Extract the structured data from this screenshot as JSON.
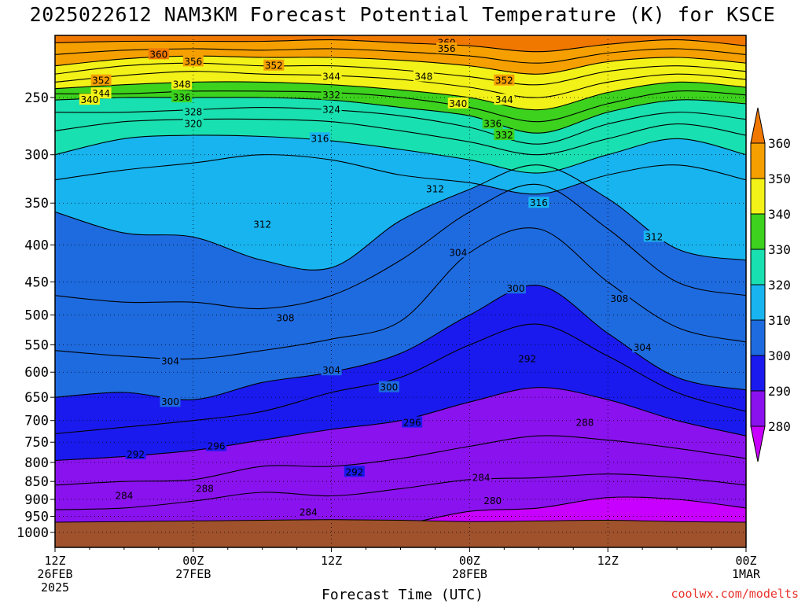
{
  "title": "2025022612 NAM3KM Forecast Potential Temperature (K) for KSCE",
  "footer": {
    "xlabel": "Forecast Time (UTC)",
    "credit": "coolwx.com/modelts"
  },
  "colors": {
    "ground": "#a0522d",
    "credit": "#e8332b"
  },
  "chart_data": {
    "type": "heatmap",
    "title": "2025022612 NAM3KM Forecast Potential Temperature (K) for KSCE",
    "xlabel": "Forecast Time (UTC)",
    "ylabel": "",
    "y_scale": "log-pressure (inverted)",
    "ylim": [
      1000,
      200
    ],
    "xlim": [
      "2025-02-26T12Z",
      "2025-03-01T00Z"
    ],
    "y_ticks": [
      250,
      300,
      350,
      400,
      450,
      500,
      550,
      600,
      650,
      700,
      750,
      800,
      850,
      900,
      950,
      1000
    ],
    "x_ticks": [
      {
        "x": 0,
        "lines": [
          "12Z",
          "26FEB",
          "2025"
        ]
      },
      {
        "x": 12,
        "lines": [
          "00Z",
          "27FEB"
        ]
      },
      {
        "x": 24,
        "lines": [
          "12Z"
        ]
      },
      {
        "x": 36,
        "lines": [
          "00Z",
          "28FEB"
        ]
      },
      {
        "x": 48,
        "lines": [
          "12Z"
        ]
      },
      {
        "x": 60,
        "lines": [
          "00Z",
          "1MAR"
        ]
      }
    ],
    "grid": true,
    "colorbar": {
      "labels": [
        280,
        290,
        300,
        310,
        320,
        330,
        340,
        350,
        360
      ],
      "colors": [
        "#c800ff",
        "#8a12ee",
        "#1a1aef",
        "#1e6be0",
        "#18b4f0",
        "#19e0b0",
        "#3cd21e",
        "#f2f218",
        "#f5a000",
        "#f07800"
      ]
    },
    "x_hours": [
      0,
      6,
      12,
      18,
      24,
      30,
      36,
      42,
      48,
      54,
      60
    ],
    "surface_pressure": [
      968,
      966,
      964,
      962,
      960,
      962,
      966,
      964,
      962,
      966,
      968
    ],
    "isentropes": [
      {
        "theta": 280,
        "p": [
          1020,
          1020,
          1020,
          1005,
          990,
          975,
          935,
          925,
          895,
          900,
          925
        ]
      },
      {
        "theta": 284,
        "p": [
          930,
          925,
          905,
          880,
          890,
          870,
          845,
          840,
          830,
          840,
          860
        ]
      },
      {
        "theta": 288,
        "p": [
          860,
          850,
          845,
          810,
          810,
          790,
          760,
          735,
          745,
          765,
          790
        ]
      },
      {
        "theta": 292,
        "p": [
          795,
          785,
          770,
          745,
          720,
          700,
          660,
          630,
          655,
          700,
          735
        ]
      },
      {
        "theta": 296,
        "p": [
          730,
          715,
          700,
          680,
          640,
          610,
          550,
          515,
          570,
          640,
          680
        ]
      },
      {
        "theta": 300,
        "p": [
          650,
          640,
          655,
          620,
          600,
          565,
          500,
          455,
          530,
          610,
          635
        ]
      },
      {
        "theta": 304,
        "p": [
          560,
          570,
          575,
          560,
          540,
          510,
          410,
          380,
          450,
          520,
          545
        ]
      },
      {
        "theta": 308,
        "p": [
          470,
          480,
          480,
          490,
          470,
          420,
          360,
          330,
          380,
          450,
          470
        ]
      },
      {
        "theta": 312,
        "p": [
          360,
          385,
          390,
          420,
          430,
          370,
          335,
          310,
          345,
          405,
          420
        ]
      },
      {
        "theta": 316,
        "p": [
          325,
          315,
          308,
          300,
          305,
          320,
          328,
          340,
          320,
          310,
          325
        ]
      },
      {
        "theta": 320,
        "p": [
          300,
          285,
          282,
          283,
          287,
          295,
          305,
          318,
          300,
          285,
          300
        ]
      },
      {
        "theta": 324,
        "p": [
          278,
          270,
          268,
          268,
          270,
          278,
          288,
          300,
          285,
          272,
          282
        ]
      },
      {
        "theta": 328,
        "p": [
          262,
          262,
          260,
          258,
          260,
          265,
          275,
          290,
          272,
          262,
          268
        ]
      },
      {
        "theta": 332,
        "p": [
          252,
          250,
          250,
          250,
          252,
          258,
          265,
          280,
          262,
          252,
          255
        ]
      },
      {
        "theta": 336,
        "p": [
          247,
          247,
          245,
          245,
          246,
          250,
          258,
          270,
          255,
          245,
          248
        ]
      },
      {
        "theta": 340,
        "p": [
          243,
          240,
          238,
          238,
          240,
          244,
          250,
          260,
          246,
          238,
          242
        ]
      },
      {
        "theta": 344,
        "p": [
          238,
          233,
          230,
          232,
          233,
          236,
          242,
          250,
          238,
          232,
          236
        ]
      },
      {
        "theta": 348,
        "p": [
          232,
          226,
          224,
          226,
          226,
          229,
          234,
          240,
          230,
          226,
          230
        ]
      },
      {
        "theta": 352,
        "p": [
          226,
          221,
          219,
          220,
          220,
          222,
          226,
          232,
          223,
          220,
          224
        ]
      },
      {
        "theta": 356,
        "p": [
          218,
          215,
          214,
          215,
          214,
          216,
          219,
          224,
          217,
          214,
          218
        ]
      },
      {
        "theta": 360,
        "p": [
          210,
          209,
          209,
          209,
          208,
          210,
          212,
          216,
          211,
          208,
          212
        ]
      }
    ],
    "contour_labels": [
      {
        "theta": 360,
        "x": 9,
        "p": 218
      },
      {
        "theta": 356,
        "x": 12,
        "p": 223
      },
      {
        "theta": 352,
        "x": 19,
        "p": 226
      },
      {
        "theta": 344,
        "x": 24,
        "p": 234
      },
      {
        "theta": 348,
        "x": 32,
        "p": 234
      },
      {
        "theta": 352,
        "x": 39,
        "p": 237
      },
      {
        "theta": 360,
        "x": 34,
        "p": 210
      },
      {
        "theta": 356,
        "x": 34,
        "p": 214
      },
      {
        "theta": 352,
        "x": 4,
        "p": 237
      },
      {
        "theta": 348,
        "x": 11,
        "p": 240
      },
      {
        "theta": 344,
        "x": 4,
        "p": 247
      },
      {
        "theta": 340,
        "x": 3,
        "p": 252
      },
      {
        "theta": 336,
        "x": 11,
        "p": 250
      },
      {
        "theta": 332,
        "x": 24,
        "p": 248
      },
      {
        "theta": 328,
        "x": 12,
        "p": 262
      },
      {
        "theta": 324,
        "x": 24,
        "p": 260
      },
      {
        "theta": 320,
        "x": 12,
        "p": 272
      },
      {
        "theta": 316,
        "x": 23,
        "p": 285
      },
      {
        "theta": 340,
        "x": 35,
        "p": 255
      },
      {
        "theta": 344,
        "x": 39,
        "p": 252
      },
      {
        "theta": 336,
        "x": 38,
        "p": 272
      },
      {
        "theta": 332,
        "x": 39,
        "p": 282
      },
      {
        "theta": 312,
        "x": 33,
        "p": 335
      },
      {
        "theta": 316,
        "x": 42,
        "p": 350
      },
      {
        "theta": 312,
        "x": 18,
        "p": 375
      },
      {
        "theta": 312,
        "x": 52,
        "p": 390
      },
      {
        "theta": 304,
        "x": 35,
        "p": 410
      },
      {
        "theta": 300,
        "x": 40,
        "p": 460
      },
      {
        "theta": 308,
        "x": 20,
        "p": 505
      },
      {
        "theta": 308,
        "x": 49,
        "p": 475
      },
      {
        "theta": 304,
        "x": 51,
        "p": 555
      },
      {
        "theta": 304,
        "x": 10,
        "p": 580
      },
      {
        "theta": 304,
        "x": 24,
        "p": 597
      },
      {
        "theta": 300,
        "x": 29,
        "p": 630
      },
      {
        "theta": 292,
        "x": 41,
        "p": 575
      },
      {
        "theta": 300,
        "x": 10,
        "p": 660
      },
      {
        "theta": 296,
        "x": 31,
        "p": 705
      },
      {
        "theta": 288,
        "x": 46,
        "p": 705
      },
      {
        "theta": 296,
        "x": 14,
        "p": 760
      },
      {
        "theta": 292,
        "x": 7,
        "p": 780
      },
      {
        "theta": 292,
        "x": 26,
        "p": 825
      },
      {
        "theta": 284,
        "x": 37,
        "p": 840
      },
      {
        "theta": 288,
        "x": 13,
        "p": 870
      },
      {
        "theta": 284,
        "x": 6,
        "p": 890
      },
      {
        "theta": 280,
        "x": 38,
        "p": 905
      },
      {
        "theta": 284,
        "x": 22,
        "p": 938
      }
    ]
  }
}
